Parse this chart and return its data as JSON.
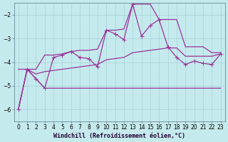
{
  "title": "",
  "xlabel": "Windchill (Refroidissement éolien,°C)",
  "background_color": "#c5eaed",
  "grid_color": "#a0cdd1",
  "line_color": "#993399",
  "x_hours": [
    0,
    1,
    2,
    3,
    4,
    5,
    6,
    7,
    8,
    9,
    10,
    11,
    12,
    13,
    14,
    15,
    16,
    17,
    18,
    19,
    20,
    21,
    22,
    23
  ],
  "line_actual": [
    -6.0,
    -4.3,
    -4.7,
    -5.1,
    -3.8,
    -3.7,
    -3.55,
    -3.8,
    -3.85,
    -4.2,
    -2.65,
    -2.8,
    -3.05,
    -1.55,
    -2.9,
    -2.45,
    -2.2,
    -3.35,
    -3.8,
    -4.1,
    -3.95,
    -4.05,
    -4.1,
    -3.65
  ],
  "line_max": [
    -4.3,
    -4.3,
    -4.3,
    -3.7,
    -3.7,
    -3.65,
    -3.55,
    -3.5,
    -3.5,
    -3.45,
    -2.65,
    -2.65,
    -2.6,
    -1.55,
    -1.55,
    -1.55,
    -2.2,
    -2.2,
    -2.2,
    -3.35,
    -3.35,
    -3.35,
    -3.6,
    -3.6
  ],
  "line_max_x": [
    1,
    1,
    2,
    3,
    4,
    5,
    6,
    7,
    8,
    9,
    10,
    11,
    12,
    13,
    14,
    15,
    16,
    17,
    18,
    19,
    20,
    21,
    22,
    23
  ],
  "line_min": [
    -6.0,
    -4.3,
    -4.7,
    -5.1,
    -5.1,
    -5.1,
    -5.1,
    -5.1,
    -5.1,
    -5.1,
    -5.1,
    -5.1,
    -5.1,
    -5.1,
    -5.1,
    -5.1,
    -5.1,
    -5.1,
    -5.1,
    -5.1,
    -5.1,
    -5.1,
    -5.1,
    -5.1
  ],
  "line_mean": [
    -6.0,
    -4.3,
    -4.5,
    -4.4,
    -4.35,
    -4.3,
    -4.25,
    -4.2,
    -4.15,
    -4.1,
    -3.9,
    -3.85,
    -3.8,
    -3.6,
    -3.55,
    -3.5,
    -3.45,
    -3.4,
    -3.4,
    -3.75,
    -3.75,
    -3.75,
    -3.75,
    -3.65
  ],
  "ylim": [
    -6.5,
    -1.5
  ],
  "yticks": [
    -6,
    -5,
    -4,
    -3,
    -2
  ],
  "xlim": [
    -0.5,
    23.5
  ],
  "xlabel_fontsize": 6,
  "tick_fontsize": 5.5,
  "lw": 0.9,
  "ms": 2.2
}
